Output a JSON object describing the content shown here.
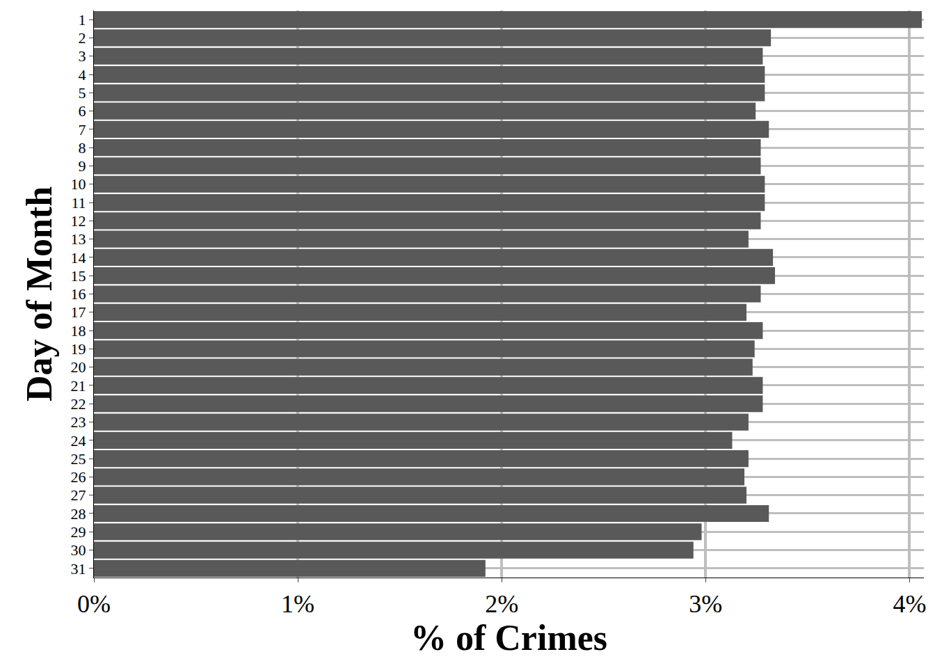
{
  "chart_data": {
    "type": "bar",
    "orientation": "horizontal",
    "x_label": "% of Crimes",
    "y_label": "Day of Month",
    "categories": [
      "1",
      "2",
      "3",
      "4",
      "5",
      "6",
      "7",
      "8",
      "9",
      "10",
      "11",
      "12",
      "13",
      "14",
      "15",
      "16",
      "17",
      "18",
      "19",
      "20",
      "21",
      "22",
      "23",
      "24",
      "25",
      "26",
      "27",
      "28",
      "29",
      "30",
      "31"
    ],
    "values": [
      4.06,
      3.32,
      3.28,
      3.29,
      3.29,
      3.245,
      3.31,
      3.27,
      3.27,
      3.29,
      3.29,
      3.27,
      3.21,
      3.33,
      3.34,
      3.27,
      3.2,
      3.28,
      3.24,
      3.23,
      3.28,
      3.28,
      3.21,
      3.13,
      3.21,
      3.19,
      3.2,
      3.31,
      2.98,
      2.94,
      1.92
    ],
    "color": "#595959",
    "xlim": [
      0,
      4.07
    ],
    "xticks": [
      {
        "value": 0,
        "label": "0%"
      },
      {
        "value": 1,
        "label": "1%"
      },
      {
        "value": 2,
        "label": "2%"
      },
      {
        "value": 3,
        "label": "3%"
      },
      {
        "value": 4,
        "label": "4%"
      }
    ],
    "grid": true
  }
}
